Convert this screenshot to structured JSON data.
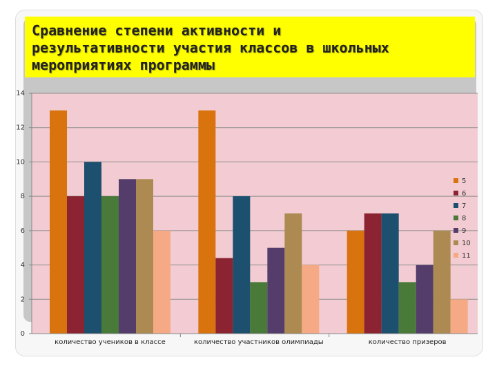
{
  "slide": {
    "title": "Сравнение степени активности и\nрезультативности участия классов в школьных\nмероприятиях программы"
  },
  "chart_data": {
    "type": "bar",
    "categories": [
      "количество учеников в классе",
      "количество участников олимпиады",
      "количество призеров"
    ],
    "series": [
      {
        "name": "5",
        "color": "#d9730d",
        "values": [
          13,
          13,
          6
        ]
      },
      {
        "name": "6",
        "color": "#8b2332",
        "values": [
          8,
          4.4,
          7
        ]
      },
      {
        "name": "7",
        "color": "#1d4f6e",
        "values": [
          10,
          8,
          7
        ]
      },
      {
        "name": "8",
        "color": "#4a7a3a",
        "values": [
          8,
          3,
          3
        ]
      },
      {
        "name": "9",
        "color": "#543d6b",
        "values": [
          9,
          5,
          4
        ]
      },
      {
        "name": "10",
        "color": "#ad8a52",
        "values": [
          9,
          7,
          6
        ]
      },
      {
        "name": "11",
        "color": "#f5aa85",
        "values": [
          6,
          4,
          2
        ]
      }
    ],
    "ylim": [
      0,
      14
    ],
    "yticks": [
      0,
      2,
      4,
      6,
      8,
      10,
      12,
      14
    ],
    "grid": true,
    "legend": "right",
    "plot_background": "#f2ccd2"
  }
}
